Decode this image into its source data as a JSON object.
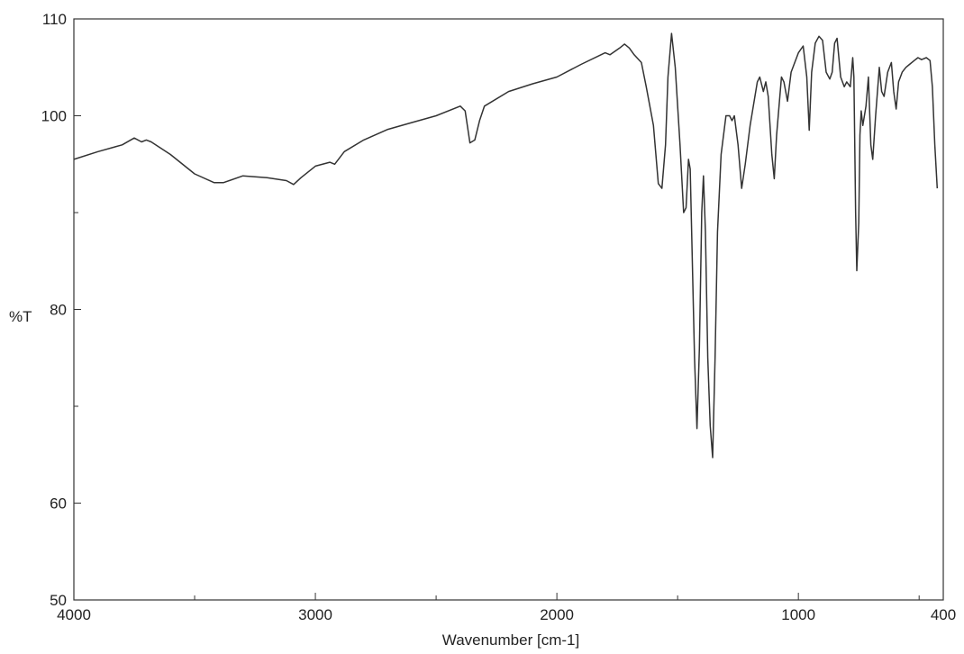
{
  "chart_data": {
    "type": "line",
    "title": "",
    "xlabel": "Wavenumber [cm-1]",
    "ylabel": "%T",
    "xlim": [
      4000,
      400
    ],
    "ylim": [
      50,
      110
    ],
    "x_reversed": true,
    "x_ticks": [
      4000,
      3000,
      2000,
      1000,
      400
    ],
    "x_minor_ticks": [
      3500,
      2500,
      1500,
      500
    ],
    "y_ticks": [
      50,
      60,
      80,
      100,
      110
    ],
    "y_minor_ticks": [
      70,
      90
    ],
    "grid": false,
    "legend": "none",
    "line_color": "#333333",
    "series": [
      {
        "points": [
          [
            4000,
            95.5
          ],
          [
            3900,
            96.3
          ],
          [
            3800,
            97.0
          ],
          [
            3750,
            97.7
          ],
          [
            3720,
            97.3
          ],
          [
            3700,
            97.5
          ],
          [
            3680,
            97.3
          ],
          [
            3600,
            96.0
          ],
          [
            3500,
            94.0
          ],
          [
            3420,
            93.1
          ],
          [
            3380,
            93.1
          ],
          [
            3300,
            93.8
          ],
          [
            3200,
            93.6
          ],
          [
            3120,
            93.3
          ],
          [
            3090,
            92.9
          ],
          [
            3060,
            93.6
          ],
          [
            3000,
            94.8
          ],
          [
            2940,
            95.2
          ],
          [
            2920,
            95.0
          ],
          [
            2880,
            96.3
          ],
          [
            2800,
            97.5
          ],
          [
            2700,
            98.6
          ],
          [
            2600,
            99.3
          ],
          [
            2500,
            100.0
          ],
          [
            2400,
            101.0
          ],
          [
            2380,
            100.5
          ],
          [
            2360,
            97.2
          ],
          [
            2340,
            97.5
          ],
          [
            2320,
            99.5
          ],
          [
            2300,
            101.0
          ],
          [
            2200,
            102.5
          ],
          [
            2100,
            103.3
          ],
          [
            2000,
            104.0
          ],
          [
            1900,
            105.3
          ],
          [
            1800,
            106.5
          ],
          [
            1780,
            106.3
          ],
          [
            1740,
            107.0
          ],
          [
            1720,
            107.4
          ],
          [
            1700,
            107.0
          ],
          [
            1680,
            106.3
          ],
          [
            1650,
            105.5
          ],
          [
            1630,
            103.0
          ],
          [
            1600,
            99.0
          ],
          [
            1580,
            93.0
          ],
          [
            1565,
            92.5
          ],
          [
            1550,
            97.0
          ],
          [
            1540,
            104.0
          ],
          [
            1525,
            108.5
          ],
          [
            1510,
            105.0
          ],
          [
            1490,
            97.0
          ],
          [
            1475,
            90.0
          ],
          [
            1465,
            90.5
          ],
          [
            1455,
            95.5
          ],
          [
            1448,
            94.5
          ],
          [
            1440,
            86.0
          ],
          [
            1430,
            75.0
          ],
          [
            1420,
            67.7
          ],
          [
            1410,
            76.0
          ],
          [
            1400,
            90.0
          ],
          [
            1393,
            93.8
          ],
          [
            1385,
            88.0
          ],
          [
            1375,
            75.0
          ],
          [
            1365,
            68.0
          ],
          [
            1355,
            64.7
          ],
          [
            1345,
            75.0
          ],
          [
            1335,
            88.0
          ],
          [
            1320,
            96.0
          ],
          [
            1300,
            100.0
          ],
          [
            1285,
            100.0
          ],
          [
            1275,
            99.5
          ],
          [
            1265,
            100.0
          ],
          [
            1250,
            97.0
          ],
          [
            1235,
            92.5
          ],
          [
            1220,
            95.0
          ],
          [
            1200,
            99.0
          ],
          [
            1170,
            103.5
          ],
          [
            1160,
            104.0
          ],
          [
            1145,
            102.5
          ],
          [
            1135,
            103.5
          ],
          [
            1125,
            102.0
          ],
          [
            1110,
            96.0
          ],
          [
            1100,
            93.5
          ],
          [
            1090,
            98.0
          ],
          [
            1070,
            104.0
          ],
          [
            1060,
            103.5
          ],
          [
            1045,
            101.5
          ],
          [
            1030,
            104.5
          ],
          [
            1000,
            106.5
          ],
          [
            980,
            107.2
          ],
          [
            965,
            104.0
          ],
          [
            955,
            98.5
          ],
          [
            945,
            104.5
          ],
          [
            930,
            107.5
          ],
          [
            915,
            108.2
          ],
          [
            900,
            107.8
          ],
          [
            885,
            104.5
          ],
          [
            870,
            103.8
          ],
          [
            860,
            104.5
          ],
          [
            850,
            107.5
          ],
          [
            840,
            108.0
          ],
          [
            825,
            104.0
          ],
          [
            810,
            103.0
          ],
          [
            800,
            103.5
          ],
          [
            785,
            103.0
          ],
          [
            775,
            106.0
          ],
          [
            770,
            104.0
          ],
          [
            763,
            90.0
          ],
          [
            758,
            84.0
          ],
          [
            750,
            89.0
          ],
          [
            745,
            98.0
          ],
          [
            740,
            100.5
          ],
          [
            733,
            99.0
          ],
          [
            720,
            101.0
          ],
          [
            710,
            104.0
          ],
          [
            700,
            97.0
          ],
          [
            692,
            95.5
          ],
          [
            680,
            100.0
          ],
          [
            665,
            105.0
          ],
          [
            655,
            102.5
          ],
          [
            645,
            102.0
          ],
          [
            630,
            104.5
          ],
          [
            615,
            105.5
          ],
          [
            605,
            102.5
          ],
          [
            595,
            100.7
          ],
          [
            585,
            103.5
          ],
          [
            570,
            104.5
          ],
          [
            555,
            105.0
          ],
          [
            540,
            105.3
          ],
          [
            520,
            105.7
          ],
          [
            505,
            106.0
          ],
          [
            490,
            105.8
          ],
          [
            470,
            106.0
          ],
          [
            455,
            105.7
          ],
          [
            445,
            103.0
          ],
          [
            435,
            97.0
          ],
          [
            425,
            92.5
          ]
        ]
      }
    ]
  }
}
